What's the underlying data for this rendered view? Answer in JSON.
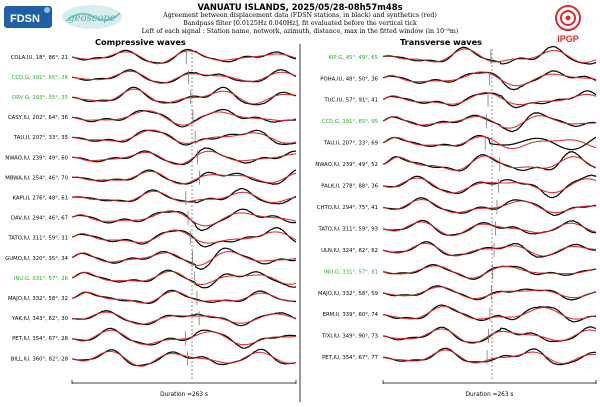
{
  "header": {
    "title": "VANUATU ISLANDS, 2025/05/28-08h57m48s",
    "line1": "Agreement between displacement data (FDSN stations, in black) and synthetics (red)",
    "line2": "Bandpass filter [0.0125Hz 0.040Hz], fit evaluated before the vertical tick",
    "line3": "Left of each signal : Station name, network, azimuth, distance, max in the fitted window (in 10⁻⁸m)"
  },
  "logos": {
    "fdsn": "FDSN",
    "geoscope": "geoscope",
    "ipgp": "IPGP"
  },
  "colors": {
    "data": "#000000",
    "synthetic": "#dd1f1f",
    "green_label": "#22aa22",
    "ipgp": "#d42e2e",
    "fdsn": "#1f5fa8",
    "geoscope": "#7fc7c7"
  },
  "chart_data": [
    {
      "type": "line",
      "title": "Compressive waves",
      "xlabel": "Duration =263 s",
      "series_legend": {
        "data": "black",
        "synthetic": "red"
      },
      "stations": [
        {
          "name": "COLA,IU",
          "azimuth": 18,
          "distance": 86,
          "max": 21,
          "green": false
        },
        {
          "name": "CCD,G",
          "azimuth": 191,
          "distance": 65,
          "max": 36,
          "green": true
        },
        {
          "name": "DRV,G",
          "azimuth": 193,
          "distance": 55,
          "max": 35,
          "green": true
        },
        {
          "name": "CASY,IU",
          "azimuth": 202,
          "distance": 64,
          "max": 36,
          "green": false
        },
        {
          "name": "TAU,II",
          "azimuth": 207,
          "distance": 33,
          "max": 35,
          "green": false
        },
        {
          "name": "NWAO,IU",
          "azimuth": 239,
          "distance": 49,
          "max": 60,
          "green": false
        },
        {
          "name": "MBWA,IU",
          "azimuth": 254,
          "distance": 46,
          "max": 70,
          "green": false
        },
        {
          "name": "KAPI,II",
          "azimuth": 276,
          "distance": 48,
          "max": 61,
          "green": false
        },
        {
          "name": "DAV,IU",
          "azimuth": 294,
          "distance": 46,
          "max": 67,
          "green": false
        },
        {
          "name": "TATO,IU",
          "azimuth": 311,
          "distance": 59,
          "max": 31,
          "green": false
        },
        {
          "name": "GUMO,IU",
          "azimuth": 320,
          "distance": 35,
          "max": 34,
          "green": false
        },
        {
          "name": "INU,G",
          "azimuth": 331,
          "distance": 57,
          "max": 26,
          "green": true
        },
        {
          "name": "MAJO,IU",
          "azimuth": 332,
          "distance": 58,
          "max": 32,
          "green": false
        },
        {
          "name": "YAK,IU",
          "azimuth": 343,
          "distance": 82,
          "max": 30,
          "green": false
        },
        {
          "name": "PET,IU",
          "azimuth": 354,
          "distance": 67,
          "max": 28,
          "green": false
        },
        {
          "name": "BILL,IU",
          "azimuth": 360,
          "distance": 82,
          "max": 28,
          "green": false
        }
      ]
    },
    {
      "type": "line",
      "title": "Transverse waves",
      "xlabel": "Duration =263 s",
      "series_legend": {
        "data": "black",
        "synthetic": "red"
      },
      "stations": [
        {
          "name": "KIP,G",
          "azimuth": 45,
          "distance": 49,
          "max": 65,
          "green": true
        },
        {
          "name": "POHA,IU",
          "azimuth": 48,
          "distance": 50,
          "max": 36,
          "green": false
        },
        {
          "name": "TUC,IU",
          "azimuth": 57,
          "distance": 91,
          "max": 41,
          "green": false
        },
        {
          "name": "CCD,G",
          "azimuth": 191,
          "distance": 65,
          "max": 95,
          "green": true
        },
        {
          "name": "TAU,II",
          "azimuth": 207,
          "distance": 33,
          "max": 69,
          "green": false
        },
        {
          "name": "NWAO,IU",
          "azimuth": 239,
          "distance": 49,
          "max": 52,
          "green": false
        },
        {
          "name": "PALK,II",
          "azimuth": 278,
          "distance": 88,
          "max": 36,
          "green": false
        },
        {
          "name": "CHTO,IU",
          "azimuth": 294,
          "distance": 75,
          "max": 41,
          "green": false
        },
        {
          "name": "TATO,IU",
          "azimuth": 311,
          "distance": 59,
          "max": 93,
          "green": false
        },
        {
          "name": "ULN,IU",
          "azimuth": 324,
          "distance": 82,
          "max": 62,
          "green": false
        },
        {
          "name": "INU,G",
          "azimuth": 331,
          "distance": 57,
          "max": 81,
          "green": true
        },
        {
          "name": "MAJO,IU",
          "azimuth": 332,
          "distance": 58,
          "max": 59,
          "green": false
        },
        {
          "name": "ERM,II",
          "azimuth": 339,
          "distance": 60,
          "max": 74,
          "green": false
        },
        {
          "name": "TIXI,IU",
          "azimuth": 349,
          "distance": 90,
          "max": 73,
          "green": false
        },
        {
          "name": "PET,IU",
          "azimuth": 354,
          "distance": 67,
          "max": 77,
          "green": false
        }
      ]
    }
  ]
}
